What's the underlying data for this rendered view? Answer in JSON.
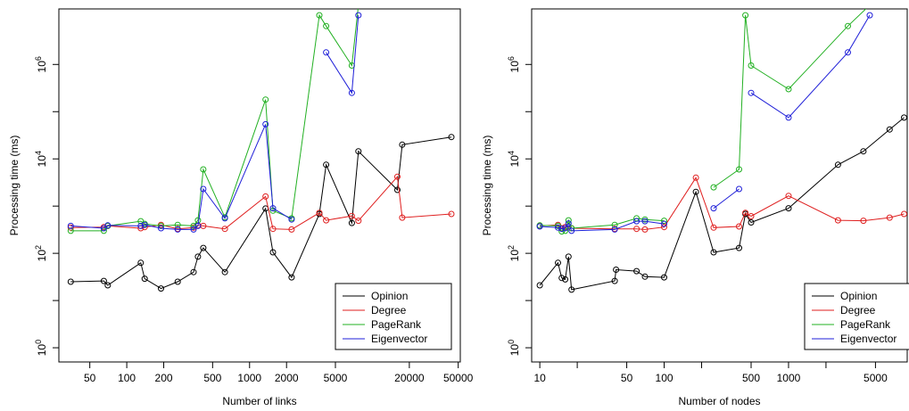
{
  "chart_data": [
    {
      "type": "line",
      "xlabel": "Number of links",
      "ylabel": "Processing time (ms)",
      "x_scale": "log",
      "y_scale": "log",
      "xlim": [
        28,
        52000
      ],
      "ylim": [
        0.5,
        15000000
      ],
      "x_ticks": [
        {
          "value": 50,
          "label": "50"
        },
        {
          "value": 100,
          "label": "100"
        },
        {
          "value": 200,
          "label": "200"
        },
        {
          "value": 500,
          "label": "500"
        },
        {
          "value": 1000,
          "label": "1000"
        },
        {
          "value": 2000,
          "label": "2000"
        },
        {
          "value": 5000,
          "label": "5000"
        },
        {
          "value": 20000,
          "label": "20000"
        },
        {
          "value": 50000,
          "label": "50000"
        }
      ],
      "y_ticks": [
        {
          "value": 1,
          "base": "10",
          "exp": "0"
        },
        {
          "value": 100,
          "base": "10",
          "exp": "2"
        },
        {
          "value": 10000,
          "base": "10",
          "exp": "4"
        },
        {
          "value": 1000000,
          "base": "10",
          "exp": "6"
        }
      ],
      "y_minor_ticks": [
        10,
        1000,
        100000
      ],
      "legend_position": "bottom-right",
      "series": [
        {
          "name": "Opinion",
          "color": "#000000",
          "segments": [
            [
              [
                35,
                25
              ],
              [
                65,
                26
              ],
              [
                70,
                21
              ],
              [
                130,
                63
              ],
              [
                140,
                29
              ],
              [
                190,
                18
              ],
              [
                260,
                25
              ],
              [
                350,
                40
              ],
              [
                380,
                85
              ],
              [
                420,
                130
              ],
              [
                630,
                40
              ],
              [
                1350,
                890
              ],
              [
                1550,
                105
              ],
              [
                2200,
                31
              ],
              [
                3700,
                680
              ],
              [
                4200,
                7500
              ],
              [
                6800,
                440
              ],
              [
                7700,
                14500
              ],
              [
                16000,
                2200
              ],
              [
                17500,
                20000
              ],
              [
                44000,
                29000
              ]
            ]
          ]
        },
        {
          "name": "Degree",
          "color": "#df1f1f",
          "segments": [
            [
              [
                35,
                350
              ],
              [
                65,
                360
              ],
              [
                70,
                380
              ],
              [
                130,
                340
              ],
              [
                140,
                360
              ],
              [
                190,
                400
              ],
              [
                260,
                330
              ],
              [
                350,
                350
              ],
              [
                380,
                390
              ],
              [
                420,
                380
              ],
              [
                630,
                330
              ],
              [
                1350,
                1600
              ],
              [
                1550,
                330
              ],
              [
                2200,
                320
              ],
              [
                3700,
                720
              ],
              [
                4200,
                500
              ],
              [
                6800,
                620
              ],
              [
                7700,
                490
              ],
              [
                16000,
                4200
              ],
              [
                17500,
                570
              ],
              [
                44000,
                680
              ]
            ]
          ]
        },
        {
          "name": "PageRank",
          "color": "#22b022",
          "segments": [
            [
              [
                35,
                300
              ],
              [
                65,
                300
              ],
              [
                70,
                380
              ],
              [
                130,
                480
              ],
              [
                140,
                420
              ],
              [
                190,
                380
              ],
              [
                260,
                400
              ],
              [
                350,
                380
              ],
              [
                380,
                500
              ],
              [
                420,
                6000
              ],
              [
                630,
                580
              ],
              [
                1350,
                180000
              ],
              [
                1550,
                800
              ],
              [
                2200,
                550
              ],
              [
                3700,
                11000000
              ],
              [
                4200,
                6500000
              ],
              [
                6800,
                950000
              ],
              [
                7700,
                18000000
              ]
            ]
          ]
        },
        {
          "name": "Eigenvector",
          "color": "#1f1fd8",
          "segments": [
            [
              [
                35,
                380
              ],
              [
                65,
                340
              ],
              [
                70,
                390
              ],
              [
                130,
                380
              ],
              [
                140,
                400
              ],
              [
                190,
                340
              ],
              [
                260,
                320
              ],
              [
                350,
                320
              ],
              [
                380,
                380
              ],
              [
                420,
                2300
              ],
              [
                630,
                550
              ],
              [
                1350,
                54000
              ],
              [
                1550,
                900
              ],
              [
                2200,
                520
              ]
            ],
            [
              [
                4200,
                1800000
              ],
              [
                6800,
                250000
              ],
              [
                7700,
                11000000
              ]
            ]
          ]
        }
      ]
    },
    {
      "type": "line",
      "xlabel": "Number of nodes",
      "ylabel": "Processing time (ms)",
      "x_scale": "log",
      "y_scale": "log",
      "xlim": [
        8.6,
        9000
      ],
      "ylim": [
        0.5,
        15000000
      ],
      "x_ticks": [
        {
          "value": 10,
          "label": "10"
        },
        {
          "value": 50,
          "label": "50"
        },
        {
          "value": 100,
          "label": "100"
        },
        {
          "value": 500,
          "label": "500"
        },
        {
          "value": 1000,
          "label": "1000"
        },
        {
          "value": 5000,
          "label": "5000"
        }
      ],
      "x_minor_ticks": [
        20,
        200,
        2000
      ],
      "y_ticks": [
        {
          "value": 1,
          "base": "10",
          "exp": "0"
        },
        {
          "value": 100,
          "base": "10",
          "exp": "2"
        },
        {
          "value": 10000,
          "base": "10",
          "exp": "4"
        },
        {
          "value": 1000000,
          "base": "10",
          "exp": "6"
        }
      ],
      "y_minor_ticks": [
        10,
        1000,
        100000
      ],
      "legend_position": "bottom-right",
      "series": [
        {
          "name": "Opinion",
          "color": "#000000",
          "segments": [
            [
              [
                10,
                21
              ],
              [
                14,
                63
              ],
              [
                15,
                30
              ],
              [
                16,
                28
              ],
              [
                17,
                85
              ],
              [
                18,
                17
              ],
              [
                40,
                26
              ],
              [
                41,
                45
              ],
              [
                60,
                42
              ],
              [
                70,
                32
              ],
              [
                100,
                31
              ],
              [
                180,
                2000
              ],
              [
                250,
                105
              ],
              [
                400,
                130
              ],
              [
                450,
                680
              ],
              [
                500,
                450
              ],
              [
                1000,
                900
              ],
              [
                2500,
                7500
              ],
              [
                4000,
                14500
              ],
              [
                6500,
                42000
              ],
              [
                8500,
                75000
              ]
            ]
          ]
        },
        {
          "name": "Degree",
          "color": "#df1f1f",
          "segments": [
            [
              [
                10,
                380
              ],
              [
                14,
                400
              ],
              [
                15,
                340
              ],
              [
                16,
                360
              ],
              [
                17,
                370
              ],
              [
                18,
                340
              ],
              [
                40,
                330
              ],
              [
                60,
                330
              ],
              [
                70,
                320
              ],
              [
                100,
                360
              ],
              [
                180,
                4000
              ],
              [
                250,
                350
              ],
              [
                400,
                370
              ],
              [
                450,
                720
              ],
              [
                500,
                610
              ],
              [
                1000,
                1650
              ],
              [
                2500,
                500
              ],
              [
                4000,
                490
              ],
              [
                6500,
                570
              ],
              [
                8500,
                680
              ]
            ]
          ]
        },
        {
          "name": "PageRank",
          "color": "#22b022",
          "segments": [
            [
              [
                10,
                390
              ],
              [
                14,
                380
              ],
              [
                15,
                290
              ],
              [
                16,
                300
              ],
              [
                17,
                500
              ],
              [
                18,
                340
              ],
              [
                40,
                400
              ],
              [
                60,
                550
              ],
              [
                70,
                520
              ],
              [
                100,
                490
              ]
            ],
            [
              [
                250,
                2500
              ],
              [
                400,
                6000
              ],
              [
                450,
                11000000
              ],
              [
                500,
                950000
              ],
              [
                1000,
                300000
              ],
              [
                3000,
                6500000
              ],
              [
                4500,
                18000000
              ]
            ]
          ]
        },
        {
          "name": "Eigenvector",
          "color": "#1f1fd8",
          "segments": [
            [
              [
                10,
                370
              ],
              [
                14,
                350
              ],
              [
                15,
                330
              ],
              [
                16,
                340
              ],
              [
                17,
                430
              ],
              [
                18,
                300
              ],
              [
                40,
                320
              ],
              [
                60,
                480
              ],
              [
                70,
                480
              ],
              [
                100,
                420
              ]
            ],
            [
              [
                250,
                900
              ],
              [
                400,
                2300
              ]
            ],
            [
              [
                500,
                250000
              ],
              [
                1000,
                75000
              ],
              [
                3000,
                1800000
              ],
              [
                4500,
                11000000
              ]
            ]
          ]
        }
      ]
    }
  ]
}
